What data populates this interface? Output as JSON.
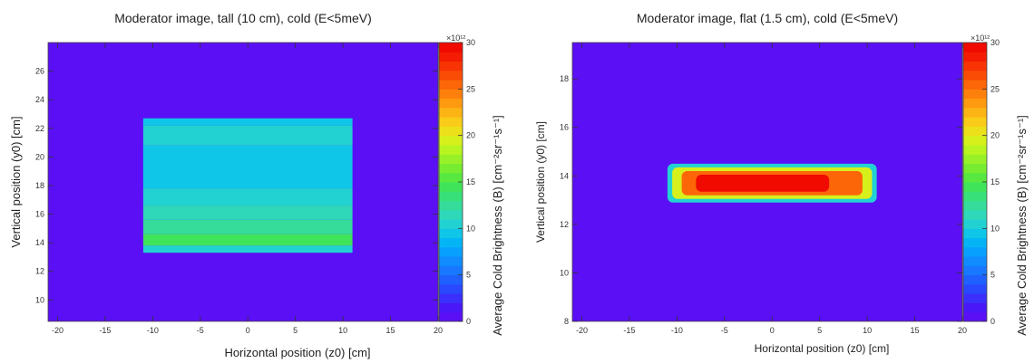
{
  "chart_data": [
    {
      "type": "heatmap",
      "title": "Moderator image, tall (10  cm), cold (E<5meV)",
      "xlabel": "Horizontal position (z0) [cm]",
      "ylabel": "Vertical position (y0) [cm]",
      "colorbar_label": "Average Cold Brightness (B) [cm⁻²sr⁻¹s⁻¹]",
      "colorbar_exponent": "×10¹²",
      "xlim": [
        -21,
        20
      ],
      "ylim": [
        8.5,
        28
      ],
      "zlim": [
        0,
        30
      ],
      "xticks": [
        -20,
        -15,
        -10,
        -5,
        0,
        5,
        10,
        15,
        20
      ],
      "yticks": [
        10,
        12,
        14,
        16,
        18,
        20,
        22,
        24,
        26
      ],
      "zticks": [
        0,
        5,
        10,
        15,
        20,
        25,
        30
      ],
      "background_value": 0,
      "region": {
        "x": [
          -11,
          11
        ],
        "y": [
          13.3,
          22.7
        ]
      },
      "value_bands": [
        {
          "y": [
            13.3,
            13.8
          ],
          "value": 10
        },
        {
          "y": [
            13.8,
            14.6
          ],
          "value": 14
        },
        {
          "y": [
            14.6,
            15.6
          ],
          "value": 12
        },
        {
          "y": [
            15.6,
            16.6
          ],
          "value": 11
        },
        {
          "y": [
            16.6,
            17.8
          ],
          "value": 10
        },
        {
          "y": [
            17.8,
            20.8
          ],
          "value": 9
        },
        {
          "y": [
            20.8,
            22.2
          ],
          "value": 10
        },
        {
          "y": [
            22.2,
            22.7
          ],
          "value": 9
        }
      ]
    },
    {
      "type": "heatmap",
      "title": "Moderator image, flat (1.5 cm), cold (E<5meV)",
      "xlabel": "Horizontal position (z0) [cm]",
      "ylabel": "Vertical position (y0) [cm]",
      "colorbar_label": "Average Cold Brightness (B) [cm⁻²sr⁻¹s⁻¹]",
      "colorbar_exponent": "×10¹²",
      "xlim": [
        -21,
        20
      ],
      "ylim": [
        8,
        19.5
      ],
      "zlim": [
        0,
        30
      ],
      "xticks": [
        -20,
        -15,
        -10,
        -5,
        0,
        5,
        10,
        15,
        20
      ],
      "yticks": [
        8,
        10,
        12,
        14,
        16,
        18
      ],
      "zticks": [
        0,
        5,
        10,
        15,
        20,
        25,
        30
      ],
      "background_value": 0,
      "region": {
        "x": [
          -11,
          11
        ],
        "y": [
          12.9,
          14.5
        ]
      },
      "layers": [
        {
          "x": [
            -11,
            11
          ],
          "y": [
            12.9,
            14.5
          ],
          "value": 10
        },
        {
          "x": [
            -10.5,
            10.5
          ],
          "y": [
            13.05,
            14.35
          ],
          "value": 19
        },
        {
          "x": [
            -9.5,
            9.5
          ],
          "y": [
            13.2,
            14.2
          ],
          "value": 25
        },
        {
          "x": [
            -8,
            6
          ],
          "y": [
            13.35,
            14.05
          ],
          "value": 29
        }
      ]
    }
  ]
}
